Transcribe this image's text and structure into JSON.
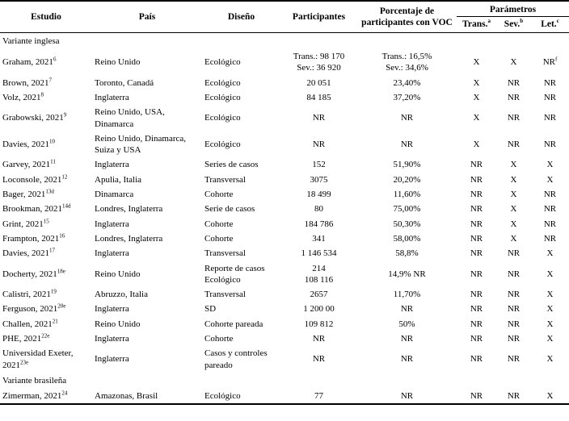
{
  "header": {
    "columns": {
      "estudio": "Estudio",
      "pais": "País",
      "diseno": "Diseño",
      "participantes": "Participantes",
      "porcentaje": "Porcentaje de\nparticipantes con VOC",
      "parametros": "Parámetros",
      "trans": "Trans.",
      "trans_sup": "a",
      "sev": "Sev.",
      "sev_sup": "b",
      "let": "Let.",
      "let_sup": "c"
    }
  },
  "rows": [
    {
      "type": "section",
      "label": "Variante inglesa"
    },
    {
      "type": "study",
      "study": "Graham, 2021",
      "study_sup": "6",
      "country": "Reino Unido",
      "design": "Ecológico",
      "participants": "Trans.: 98 170\nSev.: 36 920",
      "voc_percentage": "Trans.: 16,5%\nSev.: 34,6%",
      "trans": "X",
      "sev": "X",
      "let": "NR",
      "let_sup": "f"
    },
    {
      "type": "study",
      "study": "Brown, 2021",
      "study_sup": "7",
      "country": "Toronto, Canadá",
      "design": "Ecológico",
      "participants": "20 051",
      "voc_percentage": "23,40%",
      "trans": "X",
      "sev": "NR",
      "let": "NR"
    },
    {
      "type": "study",
      "study": "Volz, 2021",
      "study_sup": "8",
      "country": "Inglaterra",
      "design": "Ecológico",
      "participants": "84 185",
      "voc_percentage": "37,20%",
      "trans": "X",
      "sev": "NR",
      "let": "NR"
    },
    {
      "type": "study",
      "study": "Grabowski, 2021",
      "study_sup": "9",
      "country": "Reino Unido, USA,\nDinamarca",
      "design": "Ecológico",
      "participants": "NR",
      "voc_percentage": "NR",
      "trans": "X",
      "sev": "NR",
      "let": "NR"
    },
    {
      "type": "study",
      "study": "Davies, 2021",
      "study_sup": "10",
      "country": "Reino Unido, Dinamarca,\nSuiza y USA",
      "design": "Ecológico",
      "participants": "NR",
      "voc_percentage": "NR",
      "trans": "X",
      "sev": "NR",
      "let": "NR"
    },
    {
      "type": "study",
      "study": "Garvey, 2021",
      "study_sup": "11",
      "country": "Inglaterra",
      "design": "Series de casos",
      "participants": "152",
      "voc_percentage": "51,90%",
      "trans": "NR",
      "sev": "X",
      "let": "X"
    },
    {
      "type": "study",
      "study": "Loconsole, 2021",
      "study_sup": "12",
      "country": "Apulia, Italia",
      "design": "Transversal",
      "participants": "3075",
      "voc_percentage": "20,20%",
      "trans": "NR",
      "sev": "X",
      "let": "X"
    },
    {
      "type": "study",
      "study": "Bager, 2021",
      "study_sup": "13d",
      "country": "Dinamarca",
      "design": "Cohorte",
      "participants": "18 499",
      "voc_percentage": "11,60%",
      "trans": "NR",
      "sev": "X",
      "let": "NR"
    },
    {
      "type": "study",
      "study": "Brookman, 2021",
      "study_sup": "14d",
      "country": "Londres, Inglaterra",
      "design": "Serie de casos",
      "participants": "80",
      "voc_percentage": "75,00%",
      "trans": "NR",
      "sev": "X",
      "let": "NR"
    },
    {
      "type": "study",
      "study": "Grint, 2021",
      "study_sup": "15",
      "country": "Inglaterra",
      "design": "Cohorte",
      "participants": "184 786",
      "voc_percentage": "50,30%",
      "trans": "NR",
      "sev": "X",
      "let": "NR"
    },
    {
      "type": "study",
      "study": "Frampton, 2021",
      "study_sup": "16",
      "country": "Londres, Inglaterra",
      "design": "Cohorte",
      "participants": "341",
      "voc_percentage": "58,00%",
      "trans": "NR",
      "sev": "X",
      "let": "NR"
    },
    {
      "type": "study",
      "study": "Davies, 2021",
      "study_sup": "17",
      "country": "Inglaterra",
      "design": "Transversal",
      "participants": "1 146 534",
      "voc_percentage": "58,8%",
      "trans": "NR",
      "sev": "NR",
      "let": "X"
    },
    {
      "type": "study",
      "study": "Docherty, 2021",
      "study_sup": "18e",
      "country": "Reino Unido",
      "design": "Reporte de casos\nEcológico",
      "participants": "214\n108 116",
      "voc_percentage": "14,9% NR",
      "trans": "NR",
      "sev": "NR",
      "let": "X"
    },
    {
      "type": "study",
      "study": "Calistri, 2021",
      "study_sup": "19",
      "country": "Abruzzo, Italia",
      "design": "Transversal",
      "participants": "2657",
      "voc_percentage": "11,70%",
      "trans": "NR",
      "sev": "NR",
      "let": "X"
    },
    {
      "type": "study",
      "study": "Ferguson, 2021",
      "study_sup": "20e",
      "country": "Inglaterra",
      "design": "SD",
      "participants": "1 200 00",
      "voc_percentage": "NR",
      "trans": "NR",
      "sev": "NR",
      "let": "X"
    },
    {
      "type": "study",
      "study": "Challen, 2021",
      "study_sup": "21",
      "country": "Reino Unido",
      "design": "Cohorte pareada",
      "participants": "109 812",
      "voc_percentage": "50%",
      "trans": "NR",
      "sev": "NR",
      "let": "X"
    },
    {
      "type": "study",
      "study": "PHE, 2021",
      "study_sup": "22e",
      "country": "Inglaterra",
      "design": "Cohorte",
      "participants": "NR",
      "voc_percentage": "NR",
      "trans": "NR",
      "sev": "NR",
      "let": "X"
    },
    {
      "type": "study",
      "study": "Universidad Exeter,\n2021",
      "study_sup": "23e",
      "country": "Inglaterra",
      "design": "Casos y controles\npareado",
      "participants": "NR",
      "voc_percentage": "NR",
      "trans": "NR",
      "sev": "NR",
      "let": "X"
    },
    {
      "type": "section",
      "label": "Variante brasileña"
    },
    {
      "type": "study",
      "study": "Zimerman, 2021",
      "study_sup": "24",
      "country": "Amazonas, Brasil",
      "design": "Ecológico",
      "participants": "77",
      "voc_percentage": "NR",
      "trans": "NR",
      "sev": "NR",
      "let": "X"
    }
  ]
}
